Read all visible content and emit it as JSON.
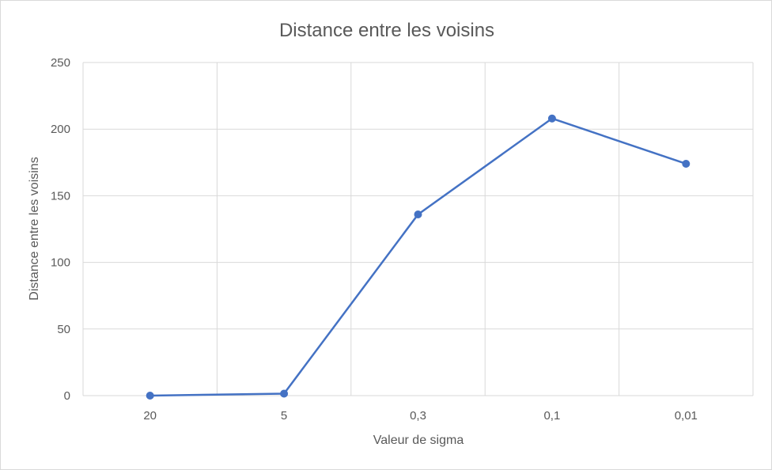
{
  "chart_data": {
    "type": "line",
    "title": "Distance entre les voisins",
    "xlabel": "Valeur de sigma",
    "ylabel": "Distance entre les voisins",
    "categories": [
      "20",
      "5",
      "0,3",
      "0,1",
      "0,01"
    ],
    "series": [
      {
        "values": [
          0,
          1.5,
          136,
          208,
          174
        ]
      }
    ],
    "ylim": [
      0,
      250
    ],
    "yticks": [
      "0",
      "50",
      "100",
      "150",
      "200",
      "250"
    ],
    "grid": true,
    "legend": "none",
    "colors": {
      "line": "#4472c4",
      "grid": "#d9d9d9",
      "text": "#595959"
    }
  }
}
